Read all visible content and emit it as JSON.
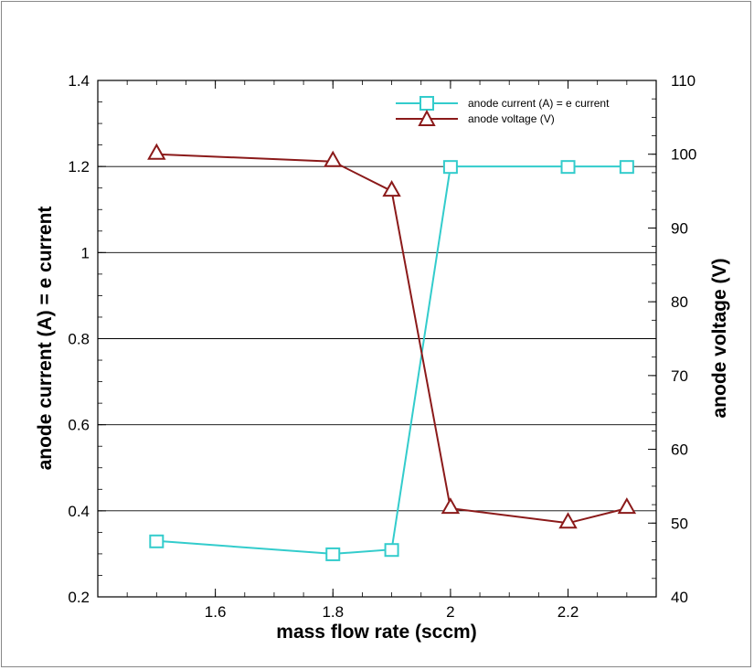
{
  "chart_data": {
    "type": "line",
    "xlabel": "mass flow rate (sccm)",
    "ylabel_left": "anode current (A) = e current",
    "ylabel_right": "anode voltage (V)",
    "xlim": [
      1.4,
      2.35
    ],
    "ylim_left": [
      0.2,
      1.4
    ],
    "ylim_right": [
      40,
      110
    ],
    "x_ticks": [
      1.6,
      1.8,
      2,
      2.2
    ],
    "x_tick_labels": [
      "1.6",
      "1.8",
      "2",
      "2.2"
    ],
    "y_left_ticks": [
      0.2,
      0.4,
      0.6,
      0.8,
      1,
      1.2,
      1.4
    ],
    "y_left_tick_labels": [
      "0.2",
      "0.4",
      "0.6",
      "0.8",
      "1",
      "1.2",
      "1.4"
    ],
    "y_right_ticks": [
      40,
      50,
      60,
      70,
      80,
      90,
      100,
      110
    ],
    "y_right_tick_labels": [
      "40",
      "50",
      "60",
      "70",
      "80",
      "90",
      "100",
      "110"
    ],
    "grid": "horizontal",
    "legend_position": "top-right",
    "series": [
      {
        "name": "anode current (A) = e current",
        "axis": "left",
        "marker": "square",
        "color": "#33cccc",
        "x": [
          1.5,
          1.8,
          1.9,
          2.0,
          2.2,
          2.3
        ],
        "values": [
          0.33,
          0.3,
          0.31,
          1.2,
          1.2,
          1.2
        ]
      },
      {
        "name": "anode voltage (V)",
        "axis": "right",
        "marker": "triangle",
        "color": "#8b1a1a",
        "x": [
          1.5,
          1.8,
          1.9,
          2.0,
          2.2,
          2.3
        ],
        "values": [
          100,
          99,
          95,
          52,
          50,
          52
        ]
      }
    ]
  }
}
